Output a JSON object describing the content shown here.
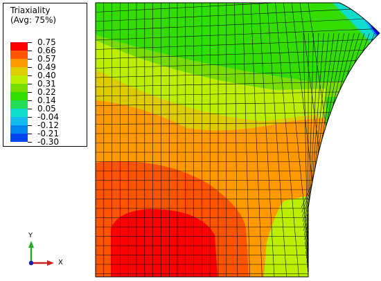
{
  "legend": {
    "title": "Triaxiality",
    "subtitle": "(Avg: 75%)",
    "levels": [
      "0.75",
      "0.66",
      "0.57",
      "0.49",
      "0.40",
      "0.31",
      "0.22",
      "0.14",
      "0.05",
      "-0.04",
      "-0.12",
      "-0.21",
      "-0.30"
    ],
    "colors": [
      "#ff0000",
      "#ff5500",
      "#ff9900",
      "#ddcc00",
      "#bbee00",
      "#77dd00",
      "#33dd00",
      "#22dd55",
      "#11ddcc",
      "#11bbee",
      "#0088ee",
      "#0044ee",
      "#0000ff"
    ]
  },
  "triad": {
    "y_label": "Y",
    "x_label": "X",
    "y_color": "#22aa22",
    "x_color": "#cc2222",
    "origin_color": "#1122aa"
  },
  "mesh": {
    "line_color": "#000000"
  }
}
